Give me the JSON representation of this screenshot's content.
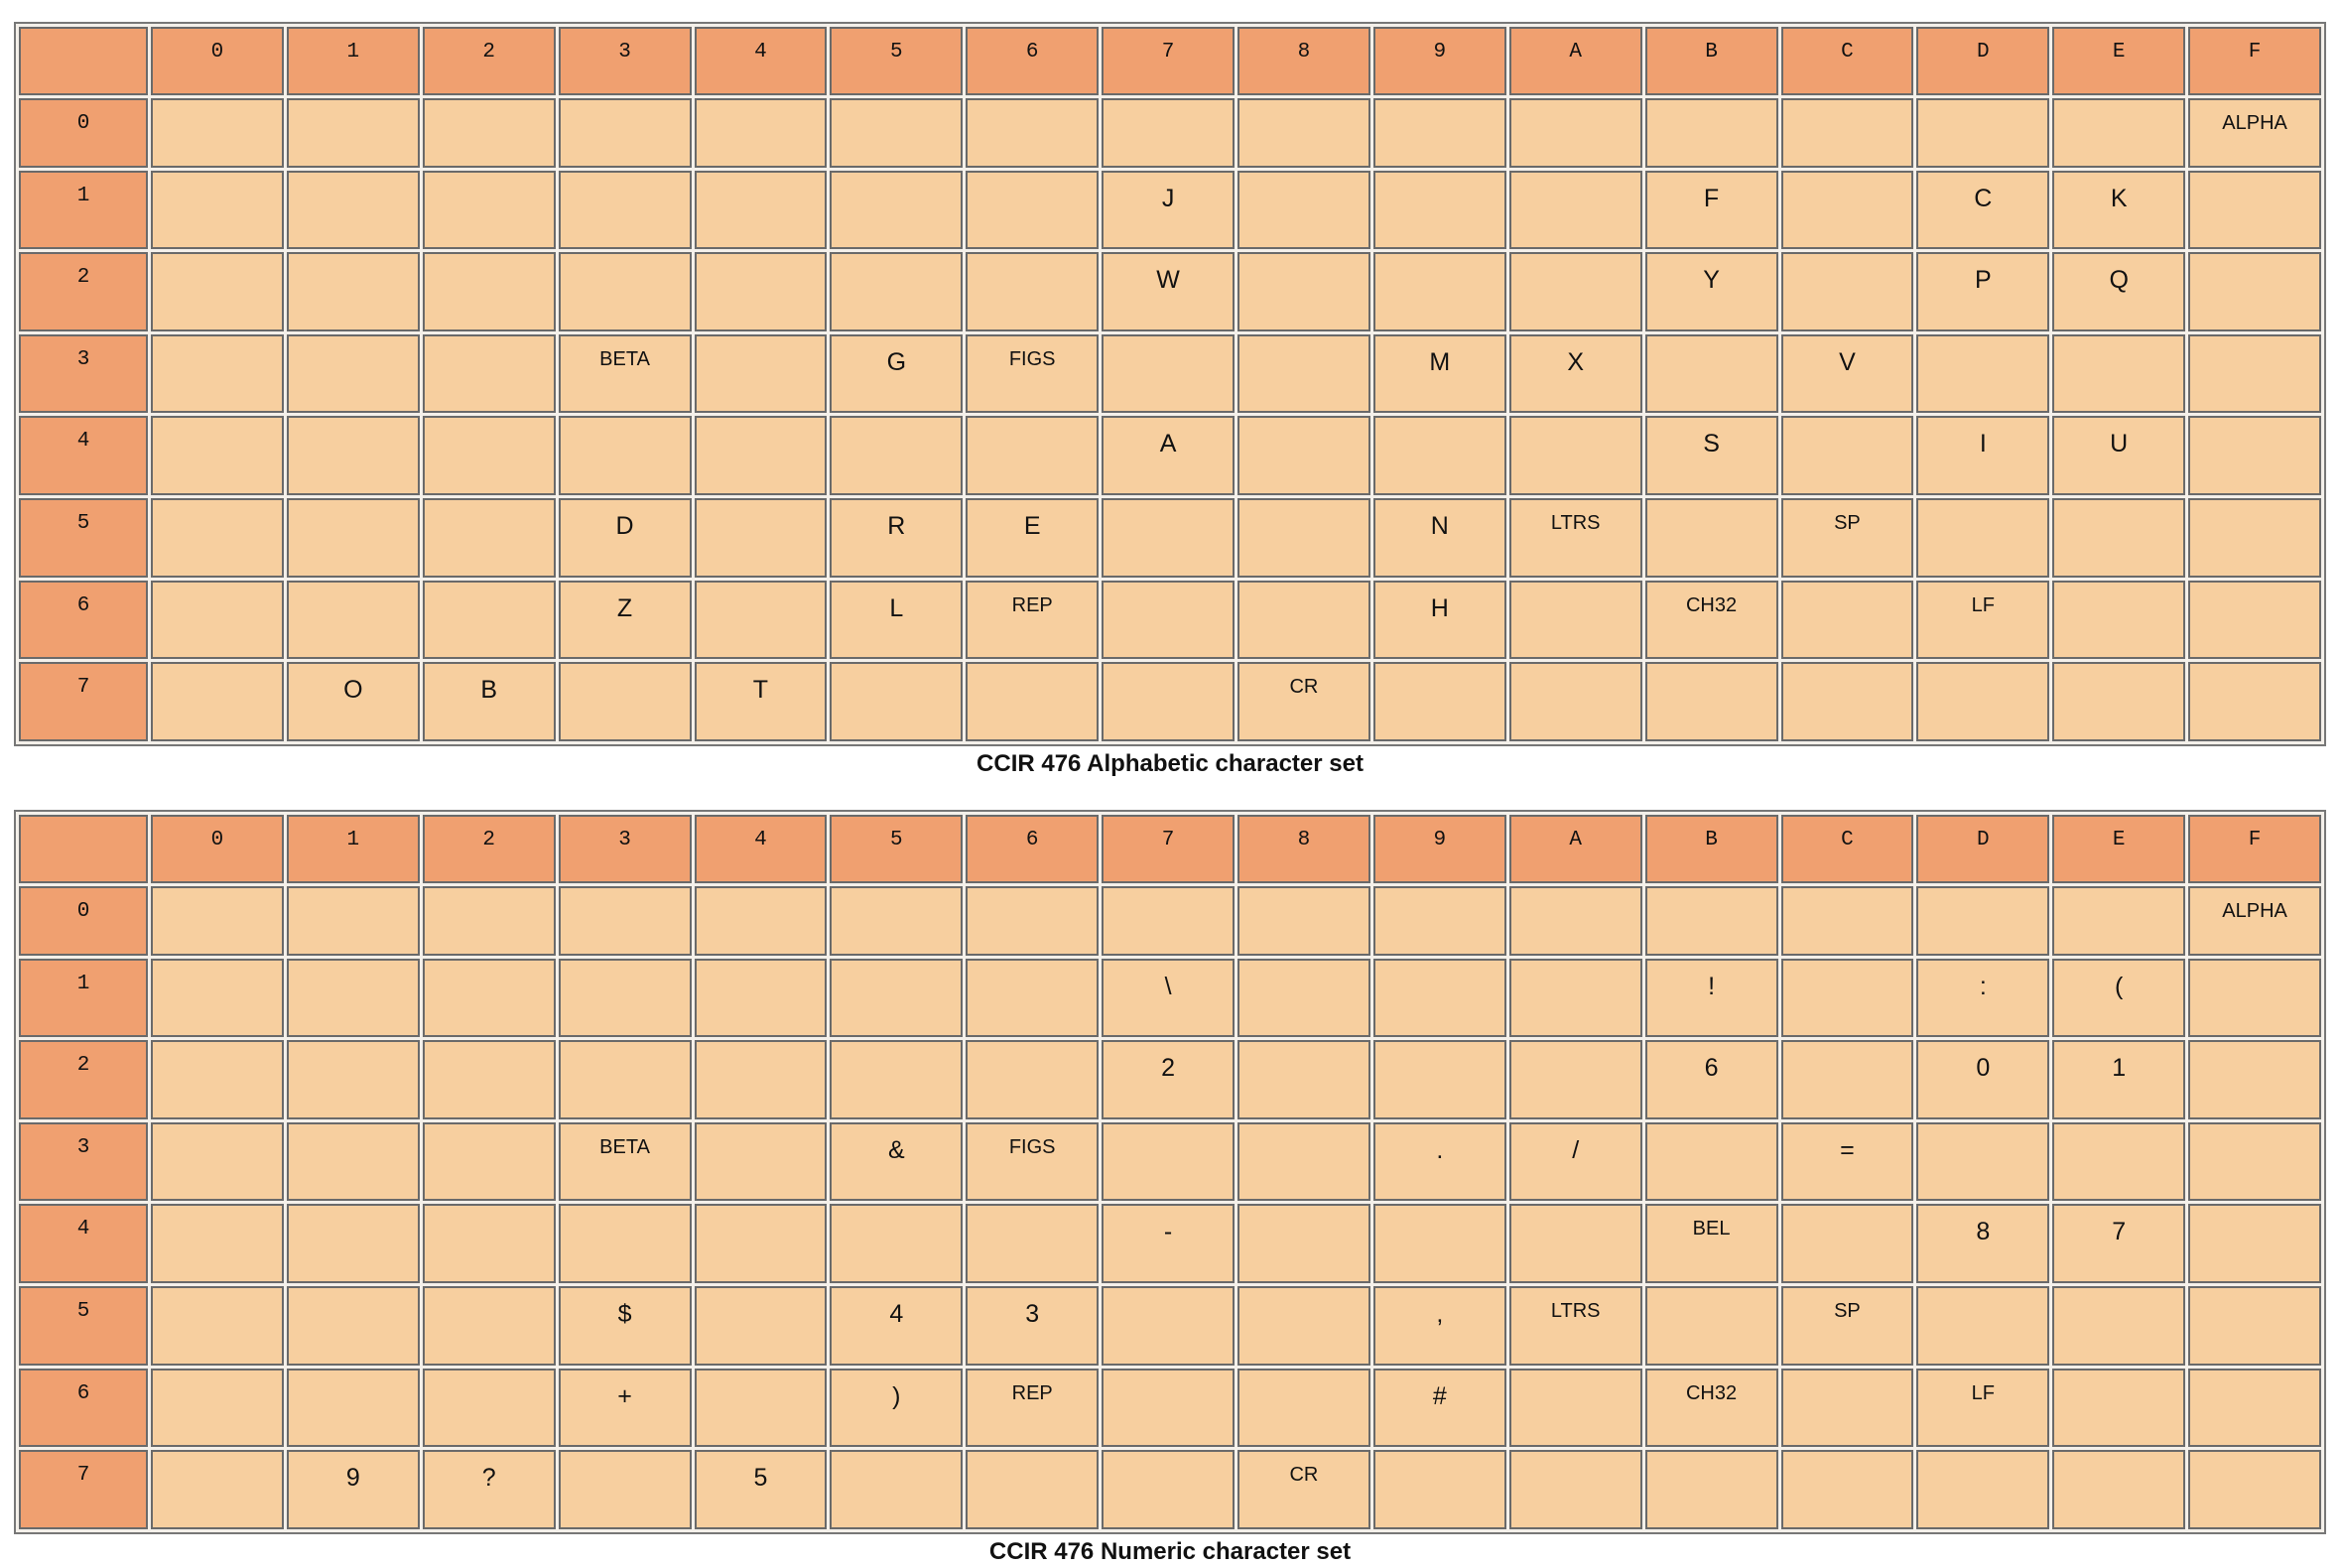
{
  "tables": [
    {
      "col_headers": [
        "0",
        "1",
        "2",
        "3",
        "4",
        "5",
        "6",
        "7",
        "8",
        "9",
        "A",
        "B",
        "C",
        "D",
        "E",
        "F"
      ],
      "rows": [
        {
          "header": "0",
          "cells": [
            null,
            null,
            null,
            null,
            null,
            null,
            null,
            null,
            null,
            null,
            null,
            null,
            null,
            null,
            null,
            "ALPHA"
          ]
        },
        {
          "header": "1",
          "cells": [
            null,
            null,
            null,
            null,
            null,
            null,
            null,
            "J",
            null,
            null,
            null,
            "F",
            null,
            "C",
            "K",
            null
          ]
        },
        {
          "header": "2",
          "cells": [
            null,
            null,
            null,
            null,
            null,
            null,
            null,
            "W",
            null,
            null,
            null,
            "Y",
            null,
            "P",
            "Q",
            null
          ]
        },
        {
          "header": "3",
          "cells": [
            null,
            null,
            null,
            "BETA",
            null,
            "G",
            "FIGS",
            null,
            null,
            "M",
            "X",
            null,
            "V",
            null,
            null,
            null
          ]
        },
        {
          "header": "4",
          "cells": [
            null,
            null,
            null,
            null,
            null,
            null,
            null,
            "A",
            null,
            null,
            null,
            "S",
            null,
            "I",
            "U",
            null
          ]
        },
        {
          "header": "5",
          "cells": [
            null,
            null,
            null,
            "D",
            null,
            "R",
            "E",
            null,
            null,
            "N",
            "LTRS",
            null,
            "SP",
            null,
            null,
            null
          ]
        },
        {
          "header": "6",
          "cells": [
            null,
            null,
            null,
            "Z",
            null,
            "L",
            "REP",
            null,
            null,
            "H",
            null,
            "CH32",
            null,
            "LF",
            null,
            null
          ]
        },
        {
          "header": "7",
          "cells": [
            null,
            "O",
            "B",
            null,
            "T",
            null,
            null,
            null,
            "CR",
            null,
            null,
            null,
            null,
            null,
            null,
            null
          ]
        }
      ],
      "caption": "CCIR 476 Alphabetic character set"
    },
    {
      "col_headers": [
        "0",
        "1",
        "2",
        "3",
        "4",
        "5",
        "6",
        "7",
        "8",
        "9",
        "A",
        "B",
        "C",
        "D",
        "E",
        "F"
      ],
      "rows": [
        {
          "header": "0",
          "cells": [
            null,
            null,
            null,
            null,
            null,
            null,
            null,
            null,
            null,
            null,
            null,
            null,
            null,
            null,
            null,
            "ALPHA"
          ]
        },
        {
          "header": "1",
          "cells": [
            null,
            null,
            null,
            null,
            null,
            null,
            null,
            "\\",
            null,
            null,
            null,
            "!",
            null,
            ":",
            "(",
            null
          ]
        },
        {
          "header": "2",
          "cells": [
            null,
            null,
            null,
            null,
            null,
            null,
            null,
            "2",
            null,
            null,
            null,
            "6",
            null,
            "0",
            "1",
            null
          ]
        },
        {
          "header": "3",
          "cells": [
            null,
            null,
            null,
            "BETA",
            null,
            "&",
            "FIGS",
            null,
            null,
            ".",
            "/",
            null,
            "=",
            null,
            null,
            null
          ]
        },
        {
          "header": "4",
          "cells": [
            null,
            null,
            null,
            null,
            null,
            null,
            null,
            "-",
            null,
            null,
            null,
            "BEL",
            null,
            "8",
            "7",
            null
          ]
        },
        {
          "header": "5",
          "cells": [
            null,
            null,
            null,
            "$",
            null,
            "4",
            "3",
            null,
            null,
            ",",
            "LTRS",
            null,
            "SP",
            null,
            null,
            null
          ]
        },
        {
          "header": "6",
          "cells": [
            null,
            null,
            null,
            "+",
            null,
            ")",
            "REP",
            null,
            null,
            "#",
            null,
            "CH32",
            null,
            "LF",
            null,
            null
          ]
        },
        {
          "header": "7",
          "cells": [
            null,
            "9",
            "?",
            null,
            "5",
            null,
            null,
            null,
            "CR",
            null,
            null,
            null,
            null,
            null,
            null,
            null
          ]
        }
      ],
      "caption": "CCIR 476 Numeric character set"
    }
  ]
}
